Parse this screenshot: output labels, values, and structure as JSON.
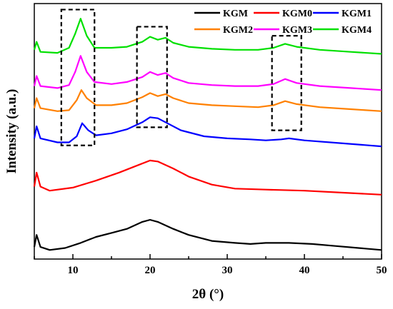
{
  "chart_data": {
    "type": "line",
    "xlabel": "2θ (°)",
    "ylabel": "Intensity (a.u.)",
    "xlim": [
      5,
      50
    ],
    "x_ticks": [
      10,
      20,
      30,
      40,
      50
    ],
    "y_axis_ticks_labeled": false,
    "legend_position": "top-right",
    "series": [
      {
        "name": "KGM",
        "color": "#000000",
        "points": [
          [
            5,
            0.03
          ],
          [
            5.3,
            0.09
          ],
          [
            5.8,
            0.03
          ],
          [
            7,
            0.015
          ],
          [
            9,
            0.025
          ],
          [
            11,
            0.05
          ],
          [
            13,
            0.08
          ],
          [
            15,
            0.1
          ],
          [
            17,
            0.12
          ],
          [
            19,
            0.155
          ],
          [
            20,
            0.165
          ],
          [
            21,
            0.155
          ],
          [
            23,
            0.12
          ],
          [
            25,
            0.09
          ],
          [
            28,
            0.06
          ],
          [
            31,
            0.05
          ],
          [
            33,
            0.045
          ],
          [
            35,
            0.05
          ],
          [
            38,
            0.05
          ],
          [
            41,
            0.045
          ],
          [
            44,
            0.035
          ],
          [
            47,
            0.025
          ],
          [
            50,
            0.015
          ]
        ]
      },
      {
        "name": "KGM0",
        "color": "#ff0000",
        "points": [
          [
            5,
            0.33
          ],
          [
            5.3,
            0.4
          ],
          [
            5.8,
            0.33
          ],
          [
            7,
            0.31
          ],
          [
            10,
            0.325
          ],
          [
            13,
            0.36
          ],
          [
            16,
            0.4
          ],
          [
            18,
            0.43
          ],
          [
            20,
            0.46
          ],
          [
            21,
            0.455
          ],
          [
            23,
            0.42
          ],
          [
            25,
            0.38
          ],
          [
            28,
            0.34
          ],
          [
            31,
            0.32
          ],
          [
            35,
            0.315
          ],
          [
            40,
            0.31
          ],
          [
            45,
            0.3
          ],
          [
            50,
            0.29
          ]
        ]
      },
      {
        "name": "KGM1",
        "color": "#0000ff",
        "points": [
          [
            5,
            0.57
          ],
          [
            5.3,
            0.63
          ],
          [
            5.8,
            0.57
          ],
          [
            8,
            0.55
          ],
          [
            9.5,
            0.55
          ],
          [
            10.5,
            0.58
          ],
          [
            11.2,
            0.645
          ],
          [
            12,
            0.61
          ],
          [
            13,
            0.585
          ],
          [
            15,
            0.595
          ],
          [
            17,
            0.615
          ],
          [
            19,
            0.65
          ],
          [
            20,
            0.675
          ],
          [
            21,
            0.67
          ],
          [
            22,
            0.65
          ],
          [
            24,
            0.61
          ],
          [
            27,
            0.58
          ],
          [
            30,
            0.57
          ],
          [
            33,
            0.565
          ],
          [
            35,
            0.56
          ],
          [
            37,
            0.565
          ],
          [
            38,
            0.57
          ],
          [
            40,
            0.56
          ],
          [
            45,
            0.545
          ],
          [
            50,
            0.53
          ]
        ]
      },
      {
        "name": "KGM2",
        "color": "#ff8000",
        "points": [
          [
            5,
            0.72
          ],
          [
            5.3,
            0.77
          ],
          [
            5.8,
            0.72
          ],
          [
            8,
            0.705
          ],
          [
            9.5,
            0.71
          ],
          [
            10.5,
            0.76
          ],
          [
            11.1,
            0.81
          ],
          [
            11.8,
            0.77
          ],
          [
            13,
            0.735
          ],
          [
            15,
            0.735
          ],
          [
            17,
            0.745
          ],
          [
            19,
            0.775
          ],
          [
            20,
            0.795
          ],
          [
            21,
            0.78
          ],
          [
            22,
            0.79
          ],
          [
            23,
            0.77
          ],
          [
            25,
            0.745
          ],
          [
            28,
            0.735
          ],
          [
            31,
            0.73
          ],
          [
            34,
            0.725
          ],
          [
            36,
            0.735
          ],
          [
            37.5,
            0.755
          ],
          [
            39,
            0.74
          ],
          [
            42,
            0.725
          ],
          [
            46,
            0.715
          ],
          [
            50,
            0.705
          ]
        ]
      },
      {
        "name": "KGM3",
        "color": "#ff00ff",
        "points": [
          [
            5,
            0.83
          ],
          [
            5.3,
            0.88
          ],
          [
            5.8,
            0.83
          ],
          [
            8,
            0.82
          ],
          [
            9.5,
            0.835
          ],
          [
            10.3,
            0.9
          ],
          [
            11,
            0.98
          ],
          [
            11.8,
            0.9
          ],
          [
            12.8,
            0.85
          ],
          [
            15,
            0.84
          ],
          [
            17,
            0.85
          ],
          [
            19,
            0.875
          ],
          [
            20,
            0.9
          ],
          [
            21,
            0.885
          ],
          [
            22,
            0.895
          ],
          [
            23,
            0.87
          ],
          [
            25,
            0.845
          ],
          [
            28,
            0.835
          ],
          [
            31,
            0.83
          ],
          [
            34,
            0.83
          ],
          [
            36,
            0.84
          ],
          [
            37.5,
            0.865
          ],
          [
            39,
            0.845
          ],
          [
            42,
            0.83
          ],
          [
            46,
            0.82
          ],
          [
            50,
            0.81
          ]
        ]
      },
      {
        "name": "KGM4",
        "color": "#00e000",
        "points": [
          [
            5,
            1.01
          ],
          [
            5.3,
            1.05
          ],
          [
            5.8,
            1.0
          ],
          [
            8,
            0.995
          ],
          [
            9.5,
            1.02
          ],
          [
            10.3,
            1.09
          ],
          [
            11,
            1.165
          ],
          [
            11.8,
            1.08
          ],
          [
            12.8,
            1.02
          ],
          [
            15,
            1.02
          ],
          [
            17,
            1.025
          ],
          [
            19,
            1.05
          ],
          [
            20,
            1.075
          ],
          [
            21,
            1.06
          ],
          [
            22,
            1.07
          ],
          [
            23,
            1.045
          ],
          [
            25,
            1.025
          ],
          [
            28,
            1.015
          ],
          [
            31,
            1.01
          ],
          [
            34,
            1.01
          ],
          [
            36,
            1.02
          ],
          [
            37.5,
            1.04
          ],
          [
            39,
            1.025
          ],
          [
            42,
            1.01
          ],
          [
            46,
            1.0
          ],
          [
            50,
            0.99
          ]
        ]
      }
    ],
    "annotations": [
      {
        "type": "dashed-box",
        "x_range": [
          8.5,
          12.8
        ],
        "y_range": [
          0.535,
          1.21
        ]
      },
      {
        "type": "dashed-box",
        "x_range": [
          18.3,
          22.2
        ],
        "y_range": [
          0.625,
          1.125
        ]
      },
      {
        "type": "dashed-box",
        "x_range": [
          35.8,
          39.6
        ],
        "y_range": [
          0.61,
          1.08
        ]
      }
    ]
  }
}
